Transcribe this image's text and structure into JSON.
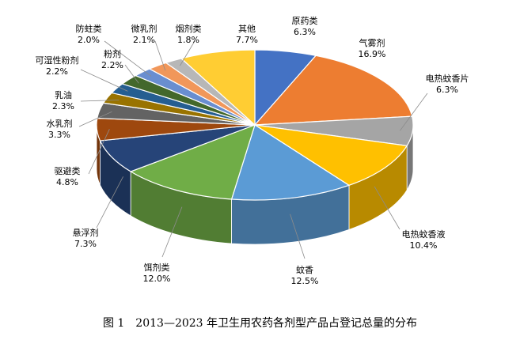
{
  "caption": "图 1　2013—2023 年卫生用农药各剂型产品占登记总量的分布",
  "chart_data": {
    "type": "pie",
    "style": "3d",
    "categories": [
      "原药类",
      "气雾剂",
      "电热蚊香片",
      "电热蚊香液",
      "蚊香",
      "饵剂类",
      "悬浮剂",
      "驱避类",
      "水乳剂",
      "乳油",
      "可湿性粉剂",
      "粉剂",
      "防蛀类",
      "微乳剂",
      "烟剂类",
      "其他"
    ],
    "values": [
      6.3,
      16.9,
      6.3,
      10.4,
      12.5,
      12.0,
      7.3,
      4.8,
      3.3,
      2.3,
      2.2,
      2.2,
      2.0,
      2.1,
      1.8,
      7.7
    ],
    "labels": [
      "6.3%",
      "16.9%",
      "6.3%",
      "10.4%",
      "12.5%",
      "12.0%",
      "7.3%",
      "4.8%",
      "3.3%",
      "2.3%",
      "2.2%",
      "2.2%",
      "2.0%",
      "2.1%",
      "1.8%",
      "7.7%"
    ],
    "colors": [
      "#4472C4",
      "#ED7D31",
      "#A5A5A5",
      "#FFC000",
      "#5B9BD5",
      "#70AD47",
      "#264478",
      "#9E480E",
      "#636363",
      "#997300",
      "#255E91",
      "#43682B",
      "#698ED0",
      "#F1975A",
      "#B7B7B7",
      "#FFCD33"
    ]
  }
}
